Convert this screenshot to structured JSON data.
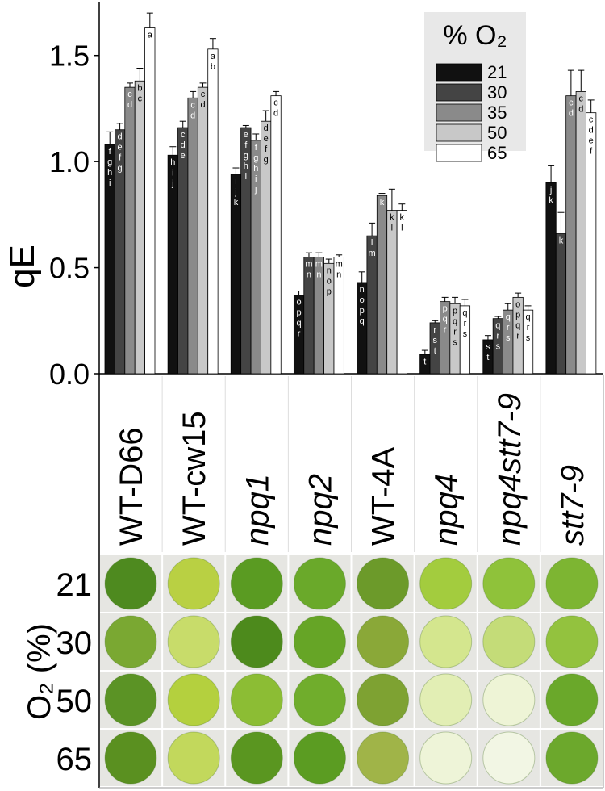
{
  "chart_data": {
    "type": "bar",
    "ylabel": "qE",
    "categories": [
      "WT-D66",
      "WT-cw15",
      "npq1",
      "npq2",
      "WT-4A",
      "npq4",
      "npq4stt7-9",
      "stt7-9"
    ],
    "legend_title": "% O₂",
    "ylim": [
      0,
      1.75
    ],
    "yticks": [
      {
        "value": 0,
        "label": "0.0"
      },
      0.5,
      {
        "value": 1,
        "label": "1.0"
      },
      1.5
    ],
    "series": [
      {
        "name": "21",
        "color": "#111111",
        "values": [
          1.08,
          1.03,
          0.94,
          0.37,
          0.43,
          0.09,
          0.16,
          0.9
        ],
        "errors": [
          0.06,
          0.04,
          0.03,
          0.02,
          0.05,
          0.02,
          0.02,
          0.08
        ],
        "letters": [
          "fghi",
          "hij",
          "ijk",
          "opqr",
          "nopq",
          "t",
          "st",
          "jk"
        ]
      },
      {
        "name": "30",
        "color": "#444444",
        "values": [
          1.15,
          1.16,
          1.16,
          0.55,
          0.65,
          0.24,
          0.26,
          0.66
        ],
        "errors": [
          0.03,
          0.03,
          0.01,
          0.02,
          0.06,
          0.01,
          0.01,
          0.1
        ],
        "letters": [
          "defg",
          "cde",
          "efghi",
          "mn",
          "lm",
          "rst",
          "qrs",
          "kl"
        ]
      },
      {
        "name": "35",
        "color": "#8a8a8a",
        "values": [
          1.35,
          1.3,
          1.1,
          0.55,
          0.84,
          0.34,
          0.3,
          1.31
        ],
        "errors": [
          0.02,
          0.03,
          0.03,
          0.02,
          0.01,
          0.02,
          0.03,
          0.12
        ],
        "letters": [
          "cd",
          "cd",
          "fghij",
          "mn",
          "kl",
          "pqr",
          "qrs",
          "cd"
        ]
      },
      {
        "name": "50",
        "color": "#c8c8c8",
        "values": [
          1.38,
          1.35,
          1.19,
          0.52,
          0.77,
          0.33,
          0.36,
          1.33
        ],
        "errors": [
          0.06,
          0.02,
          0.05,
          0.02,
          0.1,
          0.03,
          0.02,
          0.1
        ],
        "letters": [
          "bc",
          "cd",
          "defg",
          "nop",
          "kl",
          "pqrs",
          "opqr",
          "cd"
        ]
      },
      {
        "name": "65",
        "color": "#ffffff",
        "values": [
          1.63,
          1.53,
          1.31,
          0.55,
          0.77,
          0.32,
          0.3,
          1.23
        ],
        "errors": [
          0.07,
          0.05,
          0.02,
          0.01,
          0.03,
          0.03,
          0.02,
          0.06
        ],
        "letters": [
          "a",
          "ab",
          "cd",
          "mn",
          "kl",
          "qrs",
          "qrs",
          "cdef"
        ]
      }
    ],
    "photo_ylabel": "O₂ (%)",
    "photo_row_labels": [
      "21",
      "30",
      "50",
      "65"
    ]
  }
}
